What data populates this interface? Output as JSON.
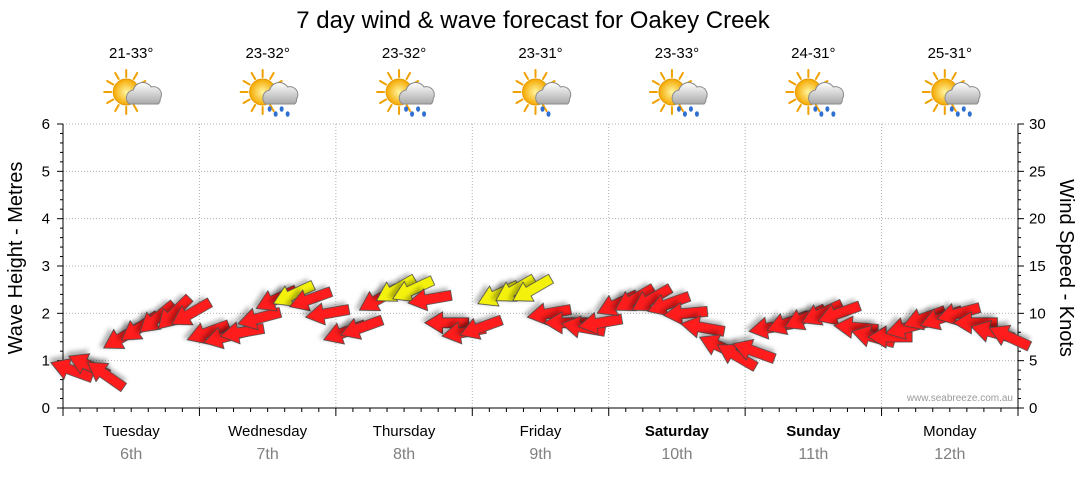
{
  "chart_data": {
    "type": "line",
    "title": "7 day wind & wave forecast for Oakey Creek",
    "ylabel_left": "Wave Height - Metres",
    "ylabel_right": "Wind Speed - Knots",
    "left_axis": {
      "ylim": [
        0,
        6
      ],
      "ticks": [
        "0",
        "1",
        "2",
        "3",
        "4",
        "5",
        "6"
      ]
    },
    "right_axis": {
      "ylim": [
        0,
        30
      ],
      "ticks": [
        "0",
        "5",
        "10",
        "15",
        "20",
        "25",
        "30"
      ]
    },
    "grid": true,
    "credit": "www.seabreeze.com.au",
    "days": [
      {
        "name": "Tuesday",
        "date": "6th",
        "temp": "21-33°",
        "weather": "partly-cloudy-icon",
        "bold": false
      },
      {
        "name": "Wednesday",
        "date": "7th",
        "temp": "23-32°",
        "weather": "showers-icon",
        "bold": false
      },
      {
        "name": "Thursday",
        "date": "8th",
        "temp": "23-32°",
        "weather": "showers-icon",
        "bold": false
      },
      {
        "name": "Friday",
        "date": "9th",
        "temp": "23-31°",
        "weather": "light-shower-icon",
        "bold": false
      },
      {
        "name": "Saturday",
        "date": "10th",
        "temp": "23-33°",
        "weather": "showers-icon",
        "bold": true
      },
      {
        "name": "Sunday",
        "date": "11th",
        "temp": "24-31°",
        "weather": "showers-icon",
        "bold": true
      },
      {
        "name": "Monday",
        "date": "12th",
        "temp": "25-31°",
        "weather": "showers-icon",
        "bold": false
      }
    ],
    "series": [
      {
        "name": "Wind Speed",
        "unit": "knots",
        "x_hours": [
          0,
          3,
          6,
          9,
          12,
          15,
          18,
          21,
          24,
          27,
          30,
          33,
          36,
          39,
          42,
          45,
          48,
          51,
          54,
          57,
          60,
          63,
          66,
          69,
          72,
          75,
          78,
          81,
          84,
          87,
          90,
          93,
          96,
          99,
          102,
          105,
          108,
          111,
          114,
          117,
          120,
          123,
          126,
          129,
          132,
          135,
          138,
          141,
          144,
          147,
          150,
          153,
          156,
          159,
          162,
          165
        ],
        "speeds": [
          4,
          4.5,
          3.5,
          7.5,
          8.5,
          9.5,
          10,
          10,
          8,
          7.5,
          8,
          9.5,
          11.5,
          12,
          11.5,
          10,
          8,
          8.5,
          11.5,
          12.5,
          12.5,
          11.5,
          9,
          8,
          8.5,
          12,
          12.5,
          12.5,
          10,
          9,
          8.5,
          9,
          11,
          11.5,
          11.5,
          11,
          10,
          8.5,
          6.5,
          5.5,
          6,
          8.5,
          9,
          9.5,
          10,
          10,
          8.5,
          7.5,
          7.5,
          8.5,
          9.5,
          9.5,
          10,
          9,
          8,
          7.5
        ],
        "bearing_deg": [
          110,
          115,
          125,
          60,
          55,
          50,
          45,
          60,
          70,
          75,
          80,
          75,
          65,
          65,
          70,
          80,
          70,
          70,
          60,
          60,
          65,
          80,
          90,
          80,
          70,
          65,
          60,
          60,
          80,
          90,
          100,
          80,
          65,
          60,
          60,
          70,
          85,
          100,
          115,
          120,
          110,
          80,
          70,
          65,
          65,
          70,
          95,
          105,
          90,
          75,
          70,
          70,
          75,
          90,
          105,
          115
        ]
      }
    ]
  }
}
